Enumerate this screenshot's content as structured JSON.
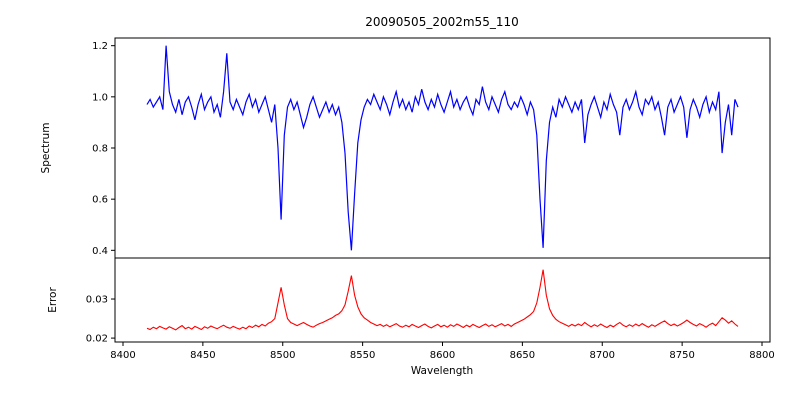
{
  "title": "20090505_2002m55_110",
  "x_axis": {
    "label": "Wavelength",
    "xlim": [
      8395,
      8805
    ],
    "ticks": [
      8400,
      8450,
      8500,
      8550,
      8600,
      8650,
      8700,
      8750,
      8800
    ],
    "tick_labels": [
      "8400",
      "8450",
      "8500",
      "8550",
      "8600",
      "8650",
      "8700",
      "8750",
      "8800"
    ]
  },
  "chart_data": [
    {
      "type": "line",
      "panel": "spectrum",
      "ylabel": "Spectrum",
      "color": "#0000ff",
      "ylim": [
        0.37,
        1.23
      ],
      "yticks": [
        0.4,
        0.6,
        0.8,
        1.0,
        1.2
      ],
      "ytick_labels": [
        "0.4",
        "0.6",
        "0.8",
        "1.0",
        "1.2"
      ],
      "x_start": 8415,
      "x_step": 2,
      "features": "absorption lines (Ca II triplet) near 8498, 8542, 8662 with minima ~0.52, 0.40, 0.41; noisy continuum ~0.97 with spikes to 1.20 at 8427 and 1.17 at 8465",
      "values": [
        0.97,
        0.99,
        0.96,
        0.98,
        1.0,
        0.95,
        1.2,
        1.02,
        0.97,
        0.94,
        0.99,
        0.93,
        0.98,
        1.0,
        0.96,
        0.91,
        0.97,
        1.01,
        0.95,
        0.98,
        1.0,
        0.94,
        0.97,
        0.92,
        1.02,
        1.17,
        0.98,
        0.95,
        0.99,
        0.96,
        0.93,
        0.98,
        1.01,
        0.96,
        0.99,
        0.94,
        0.97,
        1.0,
        0.95,
        0.9,
        0.97,
        0.8,
        0.52,
        0.85,
        0.96,
        0.99,
        0.95,
        0.98,
        0.93,
        0.88,
        0.92,
        0.97,
        1.0,
        0.96,
        0.92,
        0.95,
        0.98,
        0.94,
        0.97,
        0.93,
        0.96,
        0.9,
        0.78,
        0.55,
        0.4,
        0.62,
        0.82,
        0.91,
        0.96,
        0.99,
        0.97,
        1.01,
        0.98,
        0.95,
        1.0,
        0.97,
        0.93,
        0.98,
        1.02,
        0.96,
        0.99,
        0.95,
        0.98,
        0.94,
        1.0,
        0.97,
        1.03,
        0.98,
        0.95,
        0.99,
        0.96,
        1.01,
        0.97,
        0.94,
        0.98,
        1.02,
        0.96,
        0.99,
        0.95,
        0.98,
        1.0,
        0.96,
        0.93,
        0.99,
        0.97,
        1.04,
        0.98,
        0.95,
        1.0,
        0.97,
        0.94,
        0.99,
        1.02,
        0.97,
        0.95,
        0.98,
        0.96,
        1.0,
        0.97,
        0.93,
        0.98,
        0.95,
        0.85,
        0.6,
        0.41,
        0.75,
        0.9,
        0.96,
        0.92,
        0.99,
        0.96,
        1.0,
        0.97,
        0.94,
        0.98,
        0.95,
        0.99,
        0.82,
        0.93,
        0.97,
        1.0,
        0.96,
        0.92,
        0.98,
        0.95,
        1.01,
        0.97,
        0.94,
        0.85,
        0.96,
        0.99,
        0.95,
        0.98,
        1.02,
        0.96,
        0.93,
        0.99,
        0.97,
        1.0,
        0.95,
        0.98,
        0.92,
        0.85,
        0.96,
        0.99,
        0.94,
        0.97,
        1.0,
        0.96,
        0.84,
        0.95,
        0.99,
        0.96,
        0.92,
        0.97,
        1.0,
        0.94,
        0.98,
        0.95,
        1.02,
        0.78,
        0.9,
        0.97,
        0.85,
        0.99,
        0.96
      ]
    },
    {
      "type": "line",
      "panel": "error",
      "ylabel": "Error",
      "color": "#ff0000",
      "ylim": [
        0.019,
        0.0405
      ],
      "yticks": [
        0.02,
        0.03
      ],
      "ytick_labels": [
        "0.02",
        "0.03"
      ],
      "x_start": 8415,
      "x_step": 2,
      "features": "error baseline ~0.023 with peaks ~0.033 at 8498, ~0.036 at 8542, ~0.0375 at 8662",
      "values": [
        0.0225,
        0.0222,
        0.0228,
        0.0224,
        0.023,
        0.0226,
        0.0223,
        0.0229,
        0.0225,
        0.0221,
        0.0227,
        0.0232,
        0.0224,
        0.0228,
        0.0223,
        0.023,
        0.0226,
        0.0222,
        0.0229,
        0.0225,
        0.0231,
        0.0227,
        0.0224,
        0.0229,
        0.0233,
        0.0228,
        0.0225,
        0.023,
        0.0226,
        0.0223,
        0.0228,
        0.0224,
        0.0231,
        0.0227,
        0.0233,
        0.0229,
        0.0235,
        0.0231,
        0.0238,
        0.0242,
        0.025,
        0.029,
        0.033,
        0.0285,
        0.025,
        0.024,
        0.0236,
        0.0232,
        0.0236,
        0.024,
        0.0235,
        0.0231,
        0.0228,
        0.0233,
        0.0237,
        0.024,
        0.0244,
        0.0248,
        0.0252,
        0.0258,
        0.0262,
        0.027,
        0.0285,
        0.032,
        0.036,
        0.031,
        0.028,
        0.0262,
        0.0252,
        0.0246,
        0.024,
        0.0236,
        0.0232,
        0.0235,
        0.023,
        0.0234,
        0.0229,
        0.0233,
        0.0237,
        0.0231,
        0.0228,
        0.0233,
        0.0229,
        0.0235,
        0.0231,
        0.0227,
        0.0232,
        0.0236,
        0.023,
        0.0226,
        0.0231,
        0.0235,
        0.0229,
        0.0233,
        0.0228,
        0.0234,
        0.023,
        0.0236,
        0.0232,
        0.0227,
        0.0233,
        0.0229,
        0.0235,
        0.0231,
        0.0227,
        0.0232,
        0.0236,
        0.023,
        0.0234,
        0.0229,
        0.0233,
        0.0237,
        0.0231,
        0.0235,
        0.023,
        0.0236,
        0.024,
        0.0244,
        0.0248,
        0.0254,
        0.026,
        0.0268,
        0.029,
        0.033,
        0.0375,
        0.031,
        0.0275,
        0.0258,
        0.0248,
        0.0242,
        0.0238,
        0.0234,
        0.023,
        0.0235,
        0.0231,
        0.0236,
        0.0232,
        0.024,
        0.0234,
        0.0229,
        0.0234,
        0.023,
        0.0236,
        0.0231,
        0.0227,
        0.0233,
        0.0229,
        0.0235,
        0.024,
        0.0233,
        0.0229,
        0.0234,
        0.023,
        0.0236,
        0.0231,
        0.0237,
        0.0232,
        0.0228,
        0.0234,
        0.023,
        0.0235,
        0.024,
        0.0244,
        0.0237,
        0.0232,
        0.0236,
        0.0231,
        0.0235,
        0.024,
        0.0246,
        0.024,
        0.0235,
        0.0231,
        0.0237,
        0.0233,
        0.0228,
        0.0234,
        0.0238,
        0.0232,
        0.0242,
        0.0252,
        0.0246,
        0.0238,
        0.0244,
        0.0236,
        0.023
      ]
    }
  ]
}
